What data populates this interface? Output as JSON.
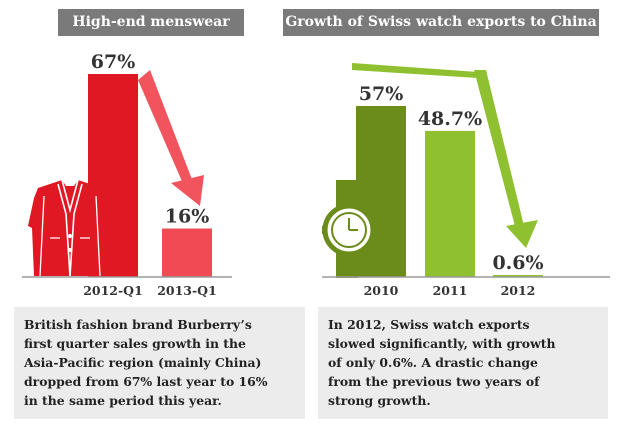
{
  "charts": {
    "left_title": "High-end menswear",
    "right_title": "Growth of Swiss watch exports to China"
  },
  "chart_data": [
    {
      "type": "bar",
      "title": "High-end menswear",
      "categories": [
        "2012-Q1",
        "2013-Q1"
      ],
      "values": [
        67,
        16
      ],
      "value_labels": [
        "67%",
        "16%"
      ],
      "unit": "%",
      "colors": [
        "#e01823",
        "#f24a55"
      ]
    },
    {
      "type": "bar",
      "title": "Growth of Swiss watch exports to China",
      "categories": [
        "2010",
        "2011",
        "2012"
      ],
      "values": [
        57,
        48.7,
        0.6
      ],
      "value_labels": [
        "57%",
        "48.7%",
        "0.6%"
      ],
      "unit": "%",
      "colors": [
        "#6b8c1a",
        "#8fc030",
        "#8fc030"
      ]
    }
  ],
  "captions": {
    "left": "British fashion brand Burberry’s\nfirst quarter sales growth in the\nAsia-Pacific region (mainly China)\ndropped from 67% last year to 16%\nin the same period this year.",
    "right": "In 2012, Swiss watch exports\nslowed significantly, with growth\nof only 0.6%. A drastic change\nfrom the previous two years of\nstrong growth."
  },
  "colors": {
    "header_bg": "#7a7a7a",
    "red": "#e01823",
    "light_red": "#f24a55",
    "dark_green": "#6b8c1a",
    "light_green": "#8fc030",
    "panel_bg": "#ececec"
  },
  "icons": [
    "jacket-icon",
    "wristwatch-icon",
    "down-arrow-icon"
  ]
}
